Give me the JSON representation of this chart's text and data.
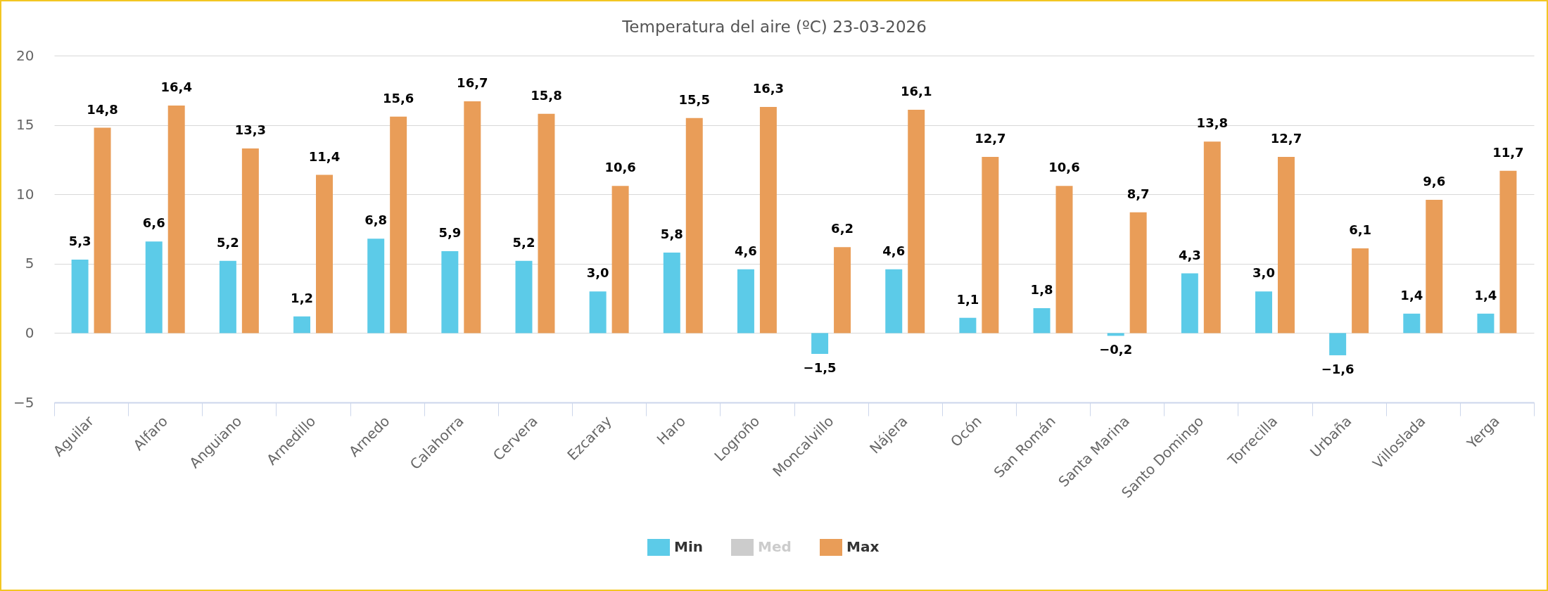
{
  "chart_data": {
    "type": "bar",
    "title": "Temperatura del aire (ºC) 23-03-2026",
    "categories": [
      "Aguilar",
      "Alfaro",
      "Anguiano",
      "Arnedillo",
      "Arnedo",
      "Calahorra",
      "Cervera",
      "Ezcaray",
      "Haro",
      "Logroño",
      "Moncalvillo",
      "Nájera",
      "Ocón",
      "San Román",
      "Santa Marina",
      "Santo Domingo",
      "Torrecilla",
      "Urbaña",
      "Villoslada",
      "Yerga"
    ],
    "series": [
      {
        "name": "Min",
        "color": "#5ccbe8",
        "values": [
          5.3,
          6.6,
          5.2,
          1.2,
          6.8,
          5.9,
          5.2,
          3.0,
          5.8,
          4.6,
          -1.5,
          4.6,
          1.1,
          1.8,
          -0.2,
          4.3,
          3.0,
          -1.6,
          1.4,
          1.4
        ],
        "value_labels": [
          "5,3",
          "6,6",
          "5,2",
          "1,2",
          "6,8",
          "5,9",
          "5,2",
          "3,0",
          "5,8",
          "4,6",
          "−1,5",
          "4,6",
          "1,1",
          "1,8",
          "−0,2",
          "4,3",
          "3,0",
          "−1,6",
          "1,4",
          "1,4"
        ]
      },
      {
        "name": "Med",
        "color": "#cccccc",
        "values": [
          null,
          null,
          null,
          null,
          null,
          null,
          null,
          null,
          null,
          null,
          null,
          null,
          null,
          null,
          null,
          null,
          null,
          null,
          null,
          null
        ]
      },
      {
        "name": "Max",
        "color": "#e99d58",
        "values": [
          14.8,
          16.4,
          13.3,
          11.4,
          15.6,
          16.7,
          15.8,
          10.6,
          15.5,
          16.3,
          6.2,
          16.1,
          12.7,
          10.6,
          8.7,
          13.8,
          12.7,
          6.1,
          9.6,
          11.7
        ],
        "value_labels": [
          "14,8",
          "16,4",
          "13,3",
          "11,4",
          "15,6",
          "16,7",
          "15,8",
          "10,6",
          "15,5",
          "16,3",
          "6,2",
          "16,1",
          "12,7",
          "10,6",
          "8,7",
          "13,8",
          "12,7",
          "6,1",
          "9,6",
          "11,7"
        ]
      }
    ],
    "ylim": [
      -5,
      20
    ],
    "yticks": [
      {
        "value": -5,
        "label": "−5"
      },
      0,
      5,
      10,
      15,
      20
    ],
    "grid": "y",
    "legend": "bottom"
  }
}
